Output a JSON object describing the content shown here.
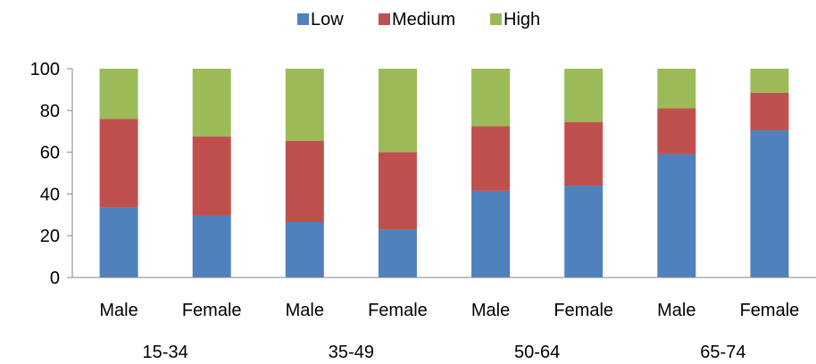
{
  "chart_data": {
    "type": "bar",
    "stacked": true,
    "legend": {
      "placement": "top-center",
      "items": [
        {
          "name": "Low",
          "color": "#4F81BD"
        },
        {
          "name": "Medium",
          "color": "#C0504D"
        },
        {
          "name": "High",
          "color": "#9BBB59"
        }
      ]
    },
    "categories": [
      "Male",
      "Female",
      "Male",
      "Female",
      "Male",
      "Female",
      "Male",
      "Female"
    ],
    "groups": [
      {
        "label": "15-34",
        "span": [
          0,
          1
        ]
      },
      {
        "label": "35-49",
        "span": [
          2,
          3
        ]
      },
      {
        "label": "50-64",
        "span": [
          4,
          5
        ]
      },
      {
        "label": "65-74",
        "span": [
          6,
          7
        ]
      }
    ],
    "series": [
      {
        "name": "Low",
        "color": "#4F81BD",
        "values": [
          33.5,
          29.5,
          26.5,
          23,
          41.5,
          44,
          59,
          70.5
        ]
      },
      {
        "name": "Medium",
        "color": "#C0504D",
        "values": [
          42.5,
          38,
          39,
          37,
          31,
          30.5,
          22,
          18
        ]
      },
      {
        "name": "High",
        "color": "#9BBB59",
        "values": [
          24,
          32.5,
          34.5,
          40,
          27.5,
          25.5,
          19,
          11.5
        ]
      }
    ],
    "ylim": [
      0,
      100
    ],
    "yticks": [
      0,
      20,
      40,
      60,
      80,
      100
    ],
    "grid": false,
    "title": "",
    "xlabel": "",
    "ylabel": ""
  }
}
